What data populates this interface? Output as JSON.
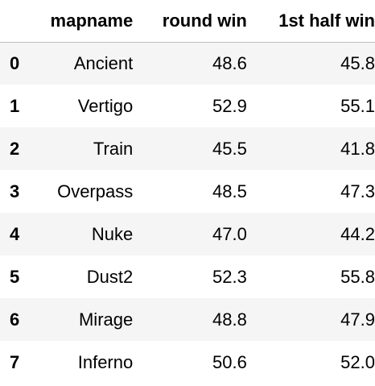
{
  "columns": [
    "",
    "mapname",
    "round win",
    "1st half win"
  ],
  "rows": [
    {
      "index": "0",
      "mapname": "Ancient",
      "round_win": "48.6",
      "first_half_win": "45.8"
    },
    {
      "index": "1",
      "mapname": "Vertigo",
      "round_win": "52.9",
      "first_half_win": "55.1"
    },
    {
      "index": "2",
      "mapname": "Train",
      "round_win": "45.5",
      "first_half_win": "41.8"
    },
    {
      "index": "3",
      "mapname": "Overpass",
      "round_win": "48.5",
      "first_half_win": "47.3"
    },
    {
      "index": "4",
      "mapname": "Nuke",
      "round_win": "47.0",
      "first_half_win": "44.2"
    },
    {
      "index": "5",
      "mapname": "Dust2",
      "round_win": "52.3",
      "first_half_win": "55.8"
    },
    {
      "index": "6",
      "mapname": "Mirage",
      "round_win": "48.8",
      "first_half_win": "47.9"
    },
    {
      "index": "7",
      "mapname": "Inferno",
      "round_win": "50.6",
      "first_half_win": "52.0"
    }
  ],
  "colors": {
    "stripe": "#f5f5f5",
    "header_rule": "#bdbdbd"
  }
}
